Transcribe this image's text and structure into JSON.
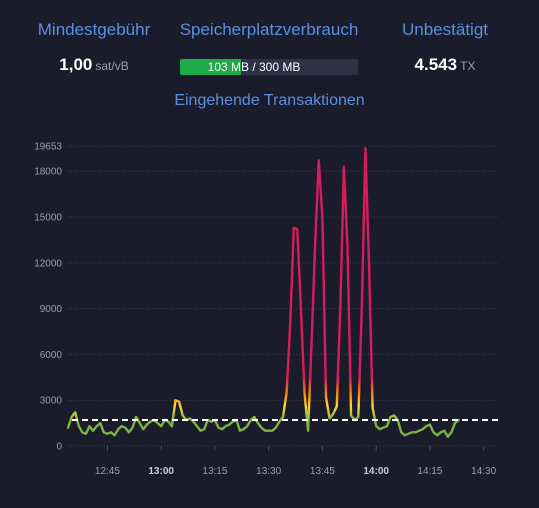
{
  "stats": {
    "fee": {
      "title": "Mindestgebühr",
      "value": "1,00",
      "unit": "sat/vB"
    },
    "memory": {
      "title": "Speicherplatzverbrauch",
      "label": "103 MB / 300 MB",
      "used_mb": 103,
      "total_mb": 300
    },
    "unconfirmed": {
      "title": "Unbestätigt",
      "value": "4.543",
      "unit": "TX"
    }
  },
  "colors": {
    "accent": "#5b8fe0",
    "progress_fill": "#1ea94a",
    "line_low": "#7cb342",
    "line_mid": "#fdd835",
    "line_high": "#d81b60"
  },
  "chart_data": {
    "type": "line",
    "title": "Eingehende Transaktionen",
    "ylim": [
      0,
      19653
    ],
    "y_ticks": [
      0,
      3000,
      6000,
      9000,
      12000,
      15000,
      18000,
      19653
    ],
    "y_tick_labels": [
      "0",
      "3000",
      "6000",
      "9000",
      "12000",
      "15000",
      "18000",
      "19653"
    ],
    "x_range_minutes": [
      754,
      874
    ],
    "x_ticks": [
      {
        "label": "12:45",
        "minute": 765,
        "major": false
      },
      {
        "label": "13:00",
        "minute": 780,
        "major": true
      },
      {
        "label": "13:15",
        "minute": 795,
        "major": false
      },
      {
        "label": "13:30",
        "minute": 810,
        "major": false
      },
      {
        "label": "13:45",
        "minute": 825,
        "major": false
      },
      {
        "label": "14:00",
        "minute": 840,
        "major": true
      },
      {
        "label": "14:15",
        "minute": 855,
        "major": false
      },
      {
        "label": "14:30",
        "minute": 870,
        "major": false
      }
    ],
    "reference_line": 1700,
    "series": [
      {
        "points": [
          [
            754,
            1200
          ],
          [
            755,
            1900
          ],
          [
            756,
            2200
          ],
          [
            757,
            1300
          ],
          [
            758,
            900
          ],
          [
            759,
            800
          ],
          [
            760,
            1300
          ],
          [
            761,
            1000
          ],
          [
            762,
            1300
          ],
          [
            763,
            1500
          ],
          [
            764,
            900
          ],
          [
            765,
            800
          ],
          [
            766,
            900
          ],
          [
            767,
            700
          ],
          [
            768,
            1100
          ],
          [
            769,
            1300
          ],
          [
            770,
            1200
          ],
          [
            771,
            900
          ],
          [
            772,
            1200
          ],
          [
            773,
            1900
          ],
          [
            774,
            1500
          ],
          [
            775,
            1100
          ],
          [
            776,
            1400
          ],
          [
            777,
            1600
          ],
          [
            778,
            1700
          ],
          [
            779,
            1500
          ],
          [
            780,
            1300
          ],
          [
            781,
            1700
          ],
          [
            782,
            1600
          ],
          [
            783,
            1300
          ],
          [
            784,
            3000
          ],
          [
            785,
            2900
          ],
          [
            786,
            2000
          ],
          [
            787,
            1700
          ],
          [
            788,
            1800
          ],
          [
            789,
            1600
          ],
          [
            790,
            1300
          ],
          [
            791,
            1000
          ],
          [
            792,
            1100
          ],
          [
            793,
            1700
          ],
          [
            794,
            1600
          ],
          [
            795,
            1700
          ],
          [
            796,
            1200
          ],
          [
            797,
            1100
          ],
          [
            798,
            1300
          ],
          [
            799,
            1400
          ],
          [
            800,
            1600
          ],
          [
            801,
            1700
          ],
          [
            802,
            1000
          ],
          [
            803,
            1100
          ],
          [
            804,
            1300
          ],
          [
            805,
            1700
          ],
          [
            806,
            1900
          ],
          [
            807,
            1500
          ],
          [
            808,
            1200
          ],
          [
            809,
            1000
          ],
          [
            810,
            1000
          ],
          [
            811,
            1000
          ],
          [
            812,
            1200
          ],
          [
            813,
            1600
          ],
          [
            814,
            1900
          ],
          [
            815,
            3500
          ],
          [
            816,
            8000
          ],
          [
            817,
            14300
          ],
          [
            818,
            14200
          ],
          [
            819,
            9000
          ],
          [
            820,
            3500
          ],
          [
            821,
            1000
          ],
          [
            822,
            7000
          ],
          [
            823,
            13500
          ],
          [
            824,
            18700
          ],
          [
            825,
            15000
          ],
          [
            826,
            3200
          ],
          [
            827,
            1800
          ],
          [
            828,
            2100
          ],
          [
            829,
            2600
          ],
          [
            830,
            9000
          ],
          [
            831,
            18300
          ],
          [
            832,
            13000
          ],
          [
            833,
            2000
          ],
          [
            834,
            1700
          ],
          [
            835,
            1900
          ],
          [
            836,
            9000
          ],
          [
            837,
            19500
          ],
          [
            838,
            12000
          ],
          [
            839,
            2500
          ],
          [
            840,
            1300
          ],
          [
            841,
            1100
          ],
          [
            842,
            1200
          ],
          [
            843,
            1300
          ],
          [
            844,
            1900
          ],
          [
            845,
            2000
          ],
          [
            846,
            1700
          ],
          [
            847,
            900
          ],
          [
            848,
            700
          ],
          [
            849,
            800
          ],
          [
            850,
            900
          ],
          [
            851,
            900
          ],
          [
            852,
            1000
          ],
          [
            853,
            1100
          ],
          [
            854,
            1300
          ],
          [
            855,
            1400
          ],
          [
            856,
            900
          ],
          [
            857,
            700
          ],
          [
            858,
            900
          ],
          [
            859,
            1000
          ],
          [
            860,
            600
          ],
          [
            861,
            900
          ],
          [
            862,
            1500
          ],
          [
            863,
            1700
          ]
        ]
      }
    ]
  }
}
